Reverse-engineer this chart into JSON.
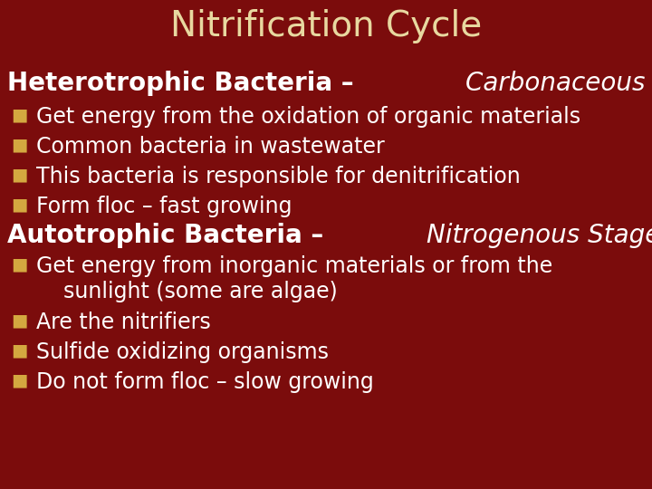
{
  "title": "Nitrification Cycle",
  "title_color": "#E8D8A0",
  "background_color": "#7B0C0C",
  "section1_heading_bold": "Heterotrophic Bacteria – ",
  "section1_heading_italic": "Carbonaceous Stage",
  "section2_heading_bold": "Autotrophic Bacteria – ",
  "section2_heading_italic": "Nitrogenous Stage",
  "bullet_color": "#D4A840",
  "heading_color": "#FFFFFF",
  "bullet_text_color": "#FFFFFF",
  "section1_bullets": [
    "Get energy from the oxidation of organic materials",
    "Common bacteria in wastewater",
    "This bacteria is responsible for denitrification",
    "Form floc – fast growing"
  ],
  "section2_bullets": [
    "Get energy from inorganic materials or from the\n    sunlight (some are algae)",
    "Are the nitrifiers",
    "Sulfide oxidizing organisms",
    "Do not form floc – slow growing"
  ],
  "title_fontsize": 28,
  "heading_fontsize": 20,
  "bullet_fontsize": 17,
  "bullet_square_fontsize": 14
}
